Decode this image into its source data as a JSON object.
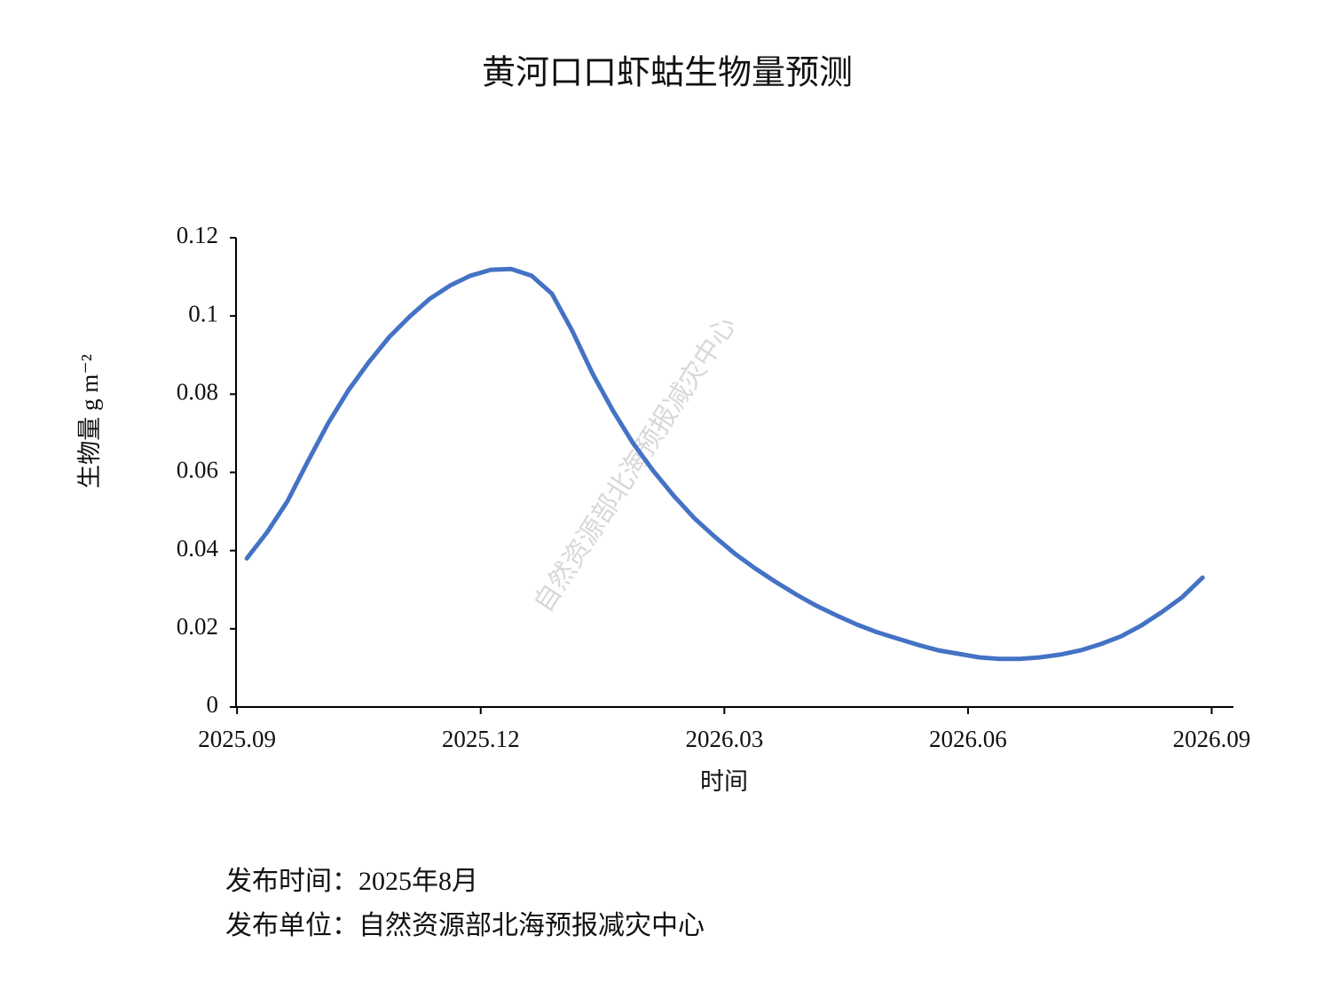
{
  "chart_data": {
    "type": "line",
    "title": "黄河口口虾蛄生物量预测",
    "xlabel": "时间",
    "ylabel": "生物量 g m⁻²",
    "watermark": "自然资源部北海预报减灾中心",
    "x": [
      2025.6767,
      2025.6976,
      2025.7184,
      2025.7393,
      2025.7602,
      2025.781,
      2025.8019,
      2025.8228,
      2025.8436,
      2025.8645,
      2025.8854,
      2025.9062,
      2025.9271,
      2025.948,
      2025.9688,
      2025.9897,
      2026.0106,
      2026.0314,
      2026.0523,
      2026.0732,
      2026.094,
      2026.1149,
      2026.1358,
      2026.1566,
      2026.1775,
      2026.1984,
      2026.2192,
      2026.2401,
      2026.261,
      2026.2818,
      2026.3027,
      2026.3236,
      2026.3444,
      2026.3653,
      2026.3862,
      2026.407,
      2026.4279,
      2026.4488,
      2026.4696,
      2026.4905,
      2026.5114,
      2026.5322,
      2026.5531,
      2026.574,
      2026.5948,
      2026.6157,
      2026.6366,
      2026.6574
    ],
    "series": [
      {
        "name": "生物量",
        "color": "#4472c4",
        "values": [
          0.038,
          0.0447,
          0.0526,
          0.0628,
          0.0726,
          0.081,
          0.0882,
          0.0946,
          0.0998,
          0.1044,
          0.1078,
          0.1103,
          0.1118,
          0.112,
          0.1103,
          0.1057,
          0.0962,
          0.0853,
          0.0758,
          0.0674,
          0.0603,
          0.054,
          0.0483,
          0.0436,
          0.0392,
          0.0354,
          0.032,
          0.0288,
          0.0259,
          0.0234,
          0.0211,
          0.0191,
          0.0175,
          0.0159,
          0.0145,
          0.0136,
          0.0127,
          0.0123,
          0.0123,
          0.0127,
          0.0134,
          0.0145,
          0.0161,
          0.0181,
          0.0209,
          0.0243,
          0.0281,
          0.0331
        ]
      }
    ],
    "xlim": [
      2025.662,
      2026.689
    ],
    "xticks": [
      {
        "value": 2025.6667,
        "label": "2025.09"
      },
      {
        "value": 2025.9167,
        "label": "2025.12"
      },
      {
        "value": 2026.1667,
        "label": "2026.03"
      },
      {
        "value": 2026.4167,
        "label": "2026.06"
      },
      {
        "value": 2026.6667,
        "label": "2026.09"
      }
    ],
    "ylim": [
      0,
      0.12
    ],
    "yticks": [
      0,
      0.02,
      0.04,
      0.06,
      0.08,
      0.1,
      0.12
    ],
    "grid": false
  },
  "footer": {
    "publish_time": "发布时间：2025年8月",
    "publisher": "发布单位：自然资源部北海预报减灾中心"
  }
}
